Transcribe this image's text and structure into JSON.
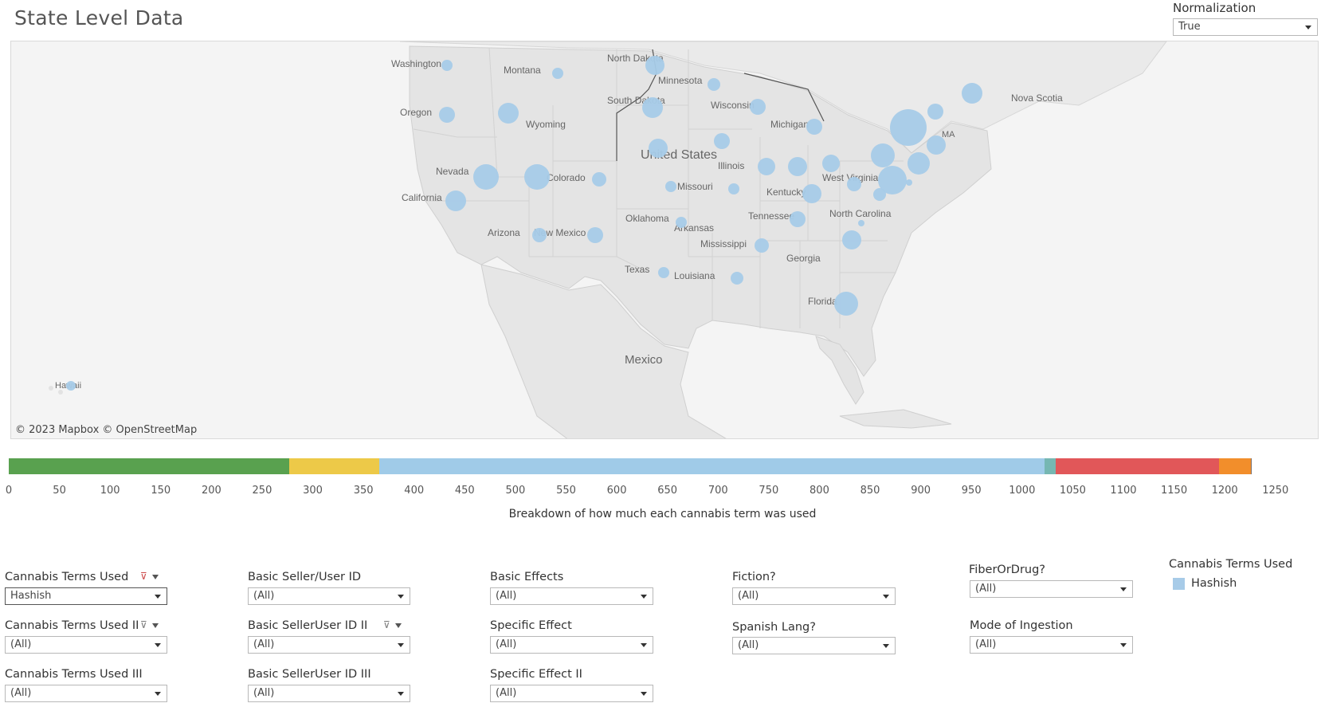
{
  "header": {
    "title": "State Level Data"
  },
  "normalization": {
    "label": "Normalization",
    "value": "True"
  },
  "map": {
    "credit": "© 2023 Mapbox  © OpenStreetMap",
    "labels": {
      "washington": "Washington",
      "oregon": "Oregon",
      "california": "California",
      "nevada": "Nevada",
      "montana": "Montana",
      "wyoming": "Wyoming",
      "colorado": "Colorado",
      "arizona": "Arizona",
      "new_mexico": "New Mexico",
      "north_dakota": "North Dakota",
      "south_dakota": "South Dakota",
      "minnesota": "Minnesota",
      "wisconsin": "Wisconsin",
      "michigan": "Michigan",
      "united_states": "United States",
      "illinois": "Illinois",
      "missouri": "Missouri",
      "kentucky": "Kentucky",
      "west_virginia": "West Virginia",
      "tennessee": "Tennessee",
      "oklahoma": "Oklahoma",
      "arkansas": "Arkansas",
      "mississippi": "Mississippi",
      "north_carolina": "North Carolina",
      "georgia": "Georgia",
      "texas": "Texas",
      "louisiana": "Louisiana",
      "florida": "Florida",
      "nova_scotia": "Nova Scotia",
      "ma": "MA",
      "mexico": "Mexico",
      "hawaii": "Hawaii"
    },
    "bubble_color": "#a7cbe8",
    "bubbles": [
      {
        "state": "Washington",
        "value": 4
      },
      {
        "state": "Oregon",
        "value": 6
      },
      {
        "state": "California",
        "value": 9
      },
      {
        "state": "Idaho",
        "value": 9
      },
      {
        "state": "Nevada",
        "value": 12
      },
      {
        "state": "Utah",
        "value": 13
      },
      {
        "state": "Montana",
        "value": 4
      },
      {
        "state": "Colorado",
        "value": 5
      },
      {
        "state": "Arizona",
        "value": 5
      },
      {
        "state": "New Mexico",
        "value": 6
      },
      {
        "state": "North Dakota",
        "value": 8
      },
      {
        "state": "South Dakota",
        "value": 9
      },
      {
        "state": "Nebraska",
        "value": 8
      },
      {
        "state": "Kansas",
        "value": 4
      },
      {
        "state": "Oklahoma",
        "value": 4
      },
      {
        "state": "Texas",
        "value": 4
      },
      {
        "state": "Minnesota",
        "value": 4
      },
      {
        "state": "Iowa",
        "value": 6
      },
      {
        "state": "Missouri",
        "value": 4
      },
      {
        "state": "Wisconsin",
        "value": 6
      },
      {
        "state": "Illinois",
        "value": 7
      },
      {
        "state": "Michigan",
        "value": 6
      },
      {
        "state": "Indiana",
        "value": 8
      },
      {
        "state": "Ohio",
        "value": 7
      },
      {
        "state": "Kentucky",
        "value": 8
      },
      {
        "state": "Tennessee",
        "value": 6
      },
      {
        "state": "Mississippi",
        "value": 5
      },
      {
        "state": "Louisiana",
        "value": 4
      },
      {
        "state": "West Virginia",
        "value": 5
      },
      {
        "state": "Virginia",
        "value": 4
      },
      {
        "state": "North Carolina",
        "value": 2
      },
      {
        "state": "South Carolina",
        "value": 8
      },
      {
        "state": "Florida",
        "value": 11
      },
      {
        "state": "Pennsylvania",
        "value": 12
      },
      {
        "state": "New York",
        "value": 28
      },
      {
        "state": "Maryland",
        "value": 18
      },
      {
        "state": "Delaware",
        "value": 2
      },
      {
        "state": "New Jersey",
        "value": 11
      },
      {
        "state": "Connecticut",
        "value": 9
      },
      {
        "state": "Vermont",
        "value": 7
      },
      {
        "state": "Maine",
        "value": 10
      },
      {
        "state": "Hawaii",
        "value": 3
      }
    ]
  },
  "chart_data": {
    "type": "bar",
    "orientation": "horizontal-stacked",
    "xlabel": "Breakdown of how much each cannabis term was used",
    "xlim": [
      0,
      1250
    ],
    "ticks": [
      "0",
      "50",
      "100",
      "150",
      "200",
      "250",
      "300",
      "350",
      "400",
      "450",
      "500",
      "550",
      "600",
      "650",
      "700",
      "750",
      "800",
      "850",
      "900",
      "950",
      "1000",
      "1050",
      "1100",
      "1150",
      "1200",
      "1250"
    ],
    "segments": [
      {
        "start": 0,
        "end": 277,
        "color": "#59a14f"
      },
      {
        "start": 277,
        "end": 366,
        "color": "#edc948"
      },
      {
        "start": 366,
        "end": 1022,
        "color": "#a0cbe8"
      },
      {
        "start": 1022,
        "end": 1033,
        "color": "#76b7b2"
      },
      {
        "start": 1033,
        "end": 1194,
        "color": "#e15759"
      },
      {
        "start": 1194,
        "end": 1226,
        "color": "#f28e2b"
      },
      {
        "start": 1226,
        "end": 1227,
        "color": "#79706e"
      }
    ]
  },
  "filters": {
    "cannabis_terms_used": {
      "label": "Cannabis Terms Used",
      "value": "Hashish"
    },
    "cannabis_terms_used_ii": {
      "label": "Cannabis Terms Used II",
      "value": "(All)"
    },
    "cannabis_terms_used_iii": {
      "label": "Cannabis Terms Used III",
      "value": "(All)"
    },
    "basic_seller_user_id": {
      "label": "Basic Seller/User ID",
      "value": "(All)"
    },
    "basic_selleruser_id_ii": {
      "label": "Basic SellerUser ID II",
      "value": "(All)"
    },
    "basic_selleruser_id_iii": {
      "label": "Basic SellerUser ID III",
      "value": "(All)"
    },
    "basic_effects": {
      "label": "Basic Effects",
      "value": "(All)"
    },
    "specific_effect": {
      "label": "Specific Effect",
      "value": "(All)"
    },
    "specific_effect_ii": {
      "label": "Specific Effect II",
      "value": "(All)"
    },
    "fiction": {
      "label": "Fiction?",
      "value": "(All)"
    },
    "spanish_lang": {
      "label": "Spanish Lang?",
      "value": "(All)"
    },
    "fiber_or_drug": {
      "label": "FiberOrDrug?",
      "value": "(All)"
    },
    "mode_of_ingestion": {
      "label": "Mode of Ingestion",
      "value": "(All)"
    }
  },
  "legend": {
    "title": "Cannabis Terms Used",
    "items": [
      {
        "label": "Hashish",
        "color": "#a7cbe8"
      }
    ]
  }
}
